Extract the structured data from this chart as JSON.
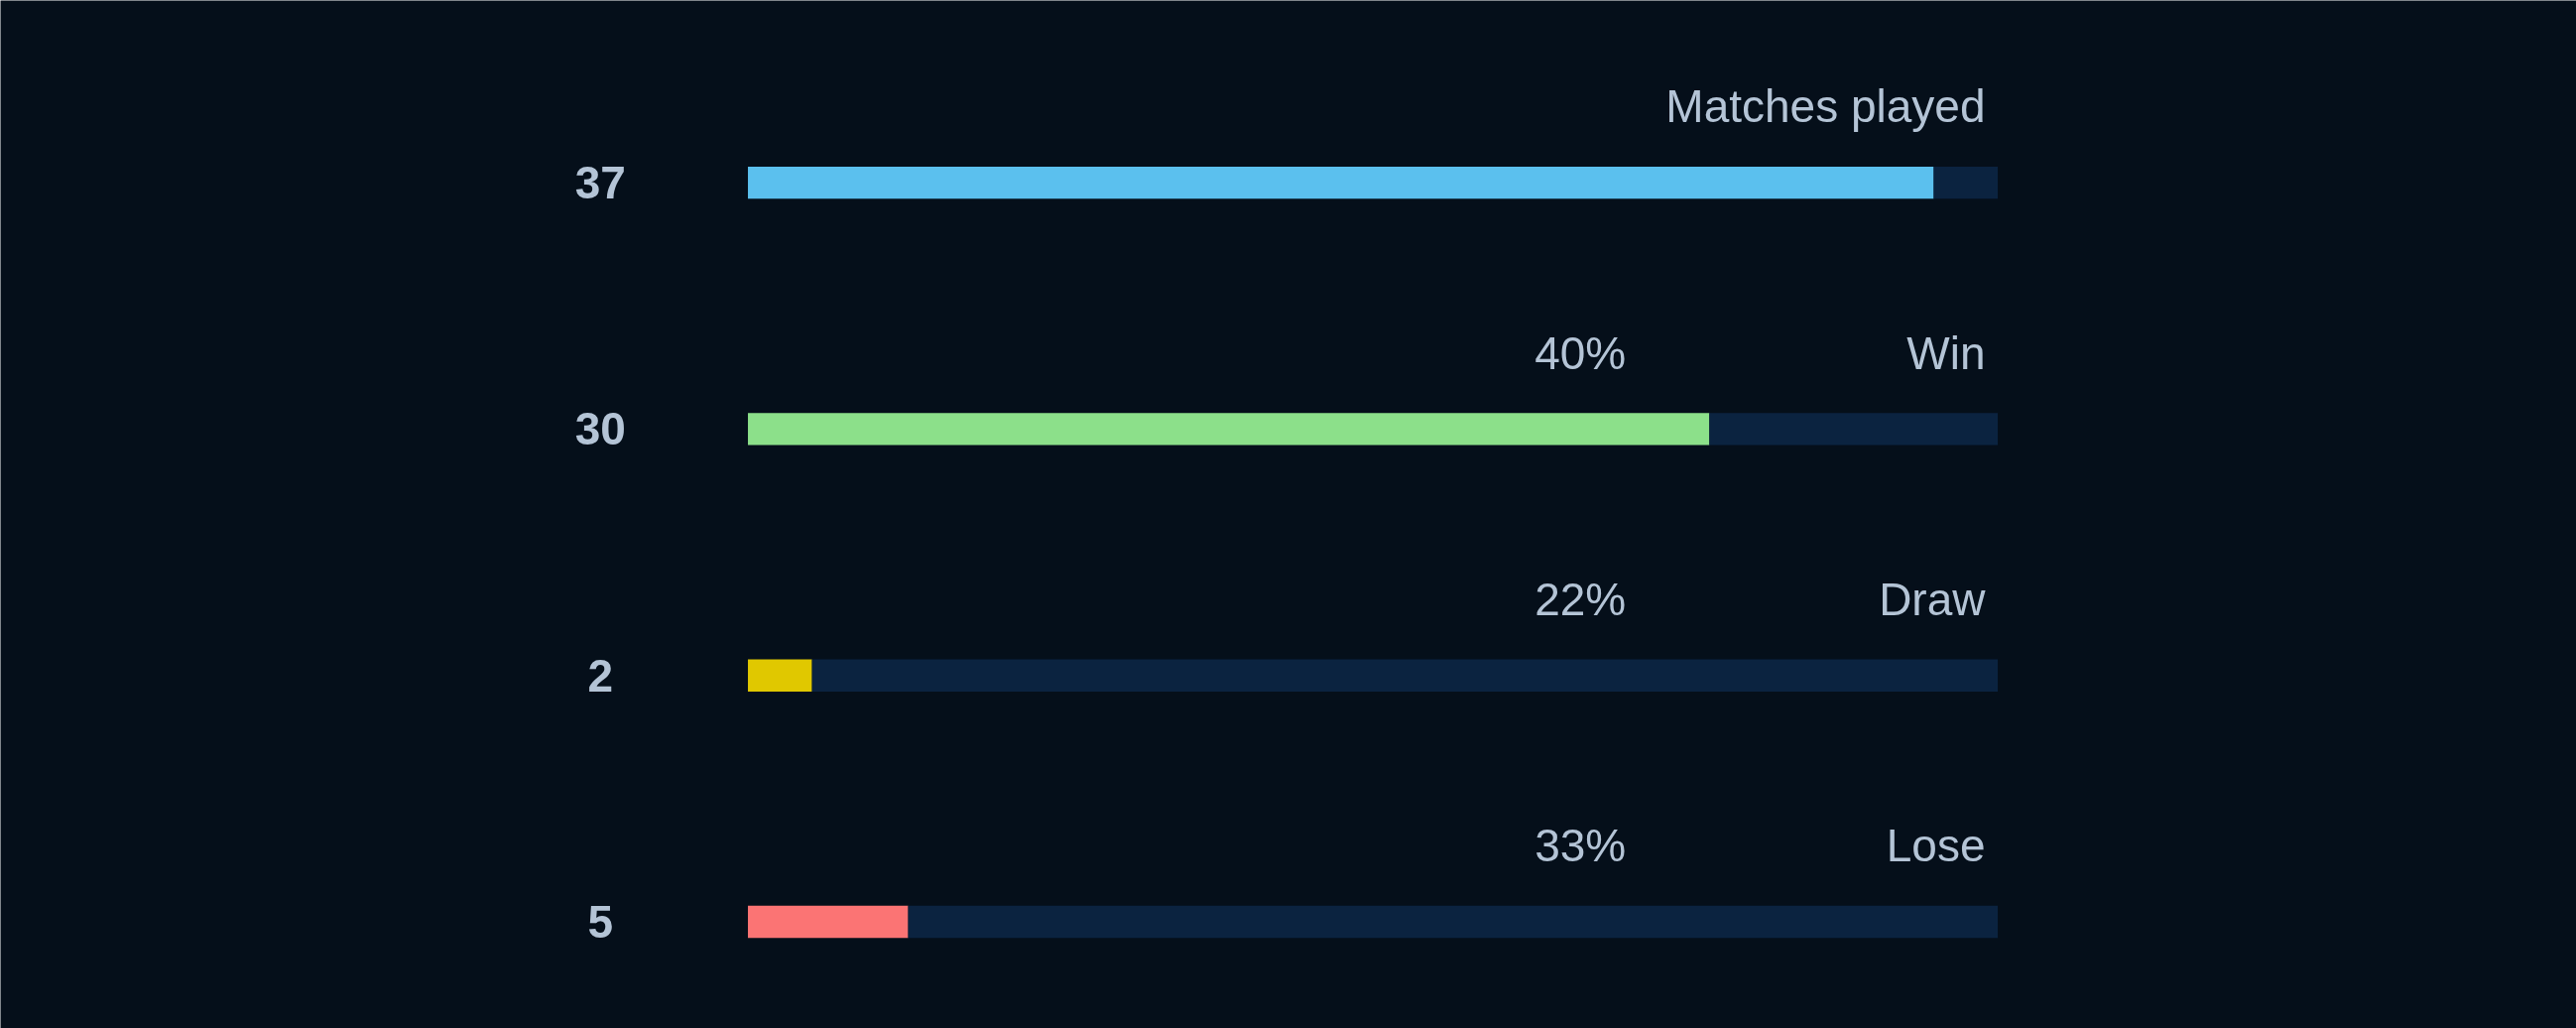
{
  "chart_data": {
    "type": "bar",
    "orientation": "horizontal",
    "stacked": true,
    "categories": [
      "Matches played",
      "Win",
      "Draw",
      "Lose"
    ],
    "series": [
      {
        "colors": [
          "#5bc0ee",
          "#8ce08a",
          "#e0c800",
          "#fb7474"
        ],
        "values": [
          37,
          30,
          2,
          5
        ],
        "value_labels": [
          "37",
          "30",
          "2",
          "5"
        ]
      },
      {
        "color": "#0b2340",
        "values": [
          2,
          9,
          37,
          34
        ]
      }
    ],
    "xlim": [
      0,
      39
    ],
    "annotations": [
      "40%",
      "22%",
      "33%"
    ],
    "grid": false
  }
}
